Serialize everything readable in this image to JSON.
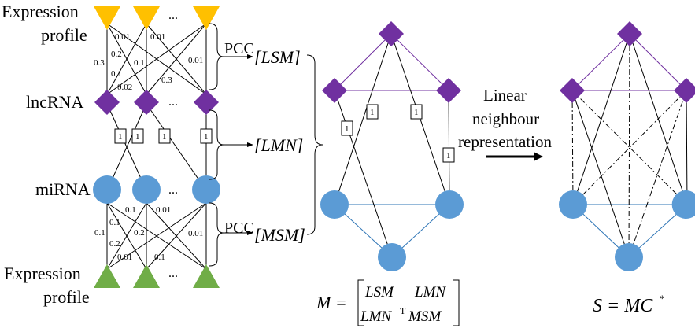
{
  "labels": {
    "expression_profile_top_line1": "Expression",
    "expression_profile_top_line2": "profile",
    "lncrna": "lncRNA",
    "mirna": "miRNA",
    "expression_profile_bottom_line1": "Expression",
    "expression_profile_bottom_line2": "profile",
    "ellipsis": "..."
  },
  "weights_top": [
    "0.01",
    "0.01",
    "0.2",
    "0.3",
    "0.1",
    "0.01",
    "0.1",
    "0.3",
    "0.02"
  ],
  "weights_bottom": [
    "0.1",
    "0.01",
    "0.1",
    "0.2",
    "0.1",
    "0.01",
    "0.2",
    "0.01",
    "0.1"
  ],
  "interaction_values": [
    "1",
    "1",
    "1",
    "1"
  ],
  "matrices": {
    "pcc_top": "PCC",
    "lsm": "[LSM]",
    "lmn": "[LMN]",
    "pcc_bottom": "PCC",
    "msm": "[MSM]"
  },
  "middle_graph": {
    "edge_values": [
      "1",
      "1",
      "1",
      "1"
    ]
  },
  "formula_m": {
    "lhs": "M =",
    "row1_col1": "LSM",
    "row1_col2": "LMN",
    "row2_col1": "LMN",
    "row2_col1_sup": "T",
    "row2_col2": "MSM"
  },
  "arrow_label": {
    "line1": "Linear",
    "line2": "neighbour",
    "line3": "representation"
  },
  "formula_s": {
    "text": "S = MC",
    "sup": "*"
  },
  "colors": {
    "expression_triangle_top": "#ffc000",
    "expression_triangle_bottom": "#70ad47",
    "lncrna": "#7030a0",
    "mirna": "#5b9bd5"
  }
}
